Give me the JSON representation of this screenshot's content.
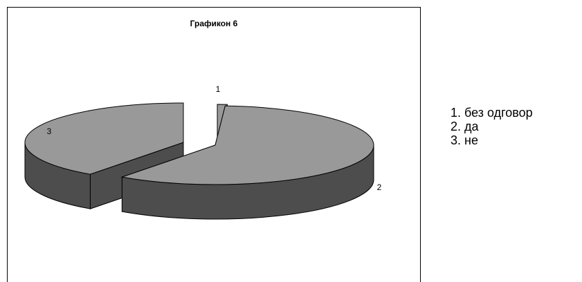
{
  "chart_data": {
    "type": "pie",
    "title": "Графикон 6",
    "categories": [
      "1",
      "2",
      "3"
    ],
    "values": [
      1,
      59,
      40
    ],
    "legend_position": "right",
    "legend": [
      "1. без одговор",
      "2. да",
      "3. не"
    ],
    "colors": {
      "top": "#999999",
      "side": "#4d4d4d",
      "outline": "#000000"
    }
  }
}
